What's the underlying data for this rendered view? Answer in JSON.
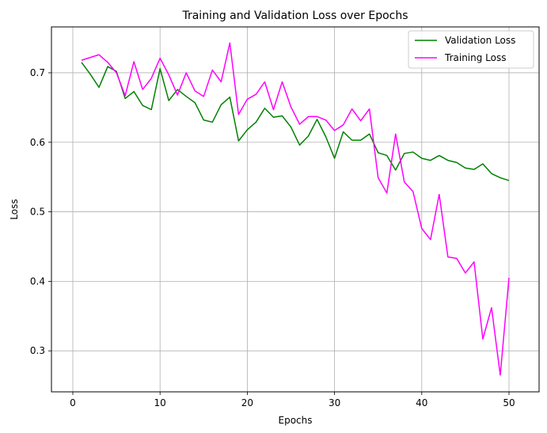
{
  "chart_data": {
    "type": "line",
    "title": "Training and Validation Loss over Epochs",
    "xlabel": "Epochs",
    "ylabel": "Loss",
    "xlim": [
      -2.45,
      53.45
    ],
    "ylim": [
      0.241,
      0.766
    ],
    "xticks": [
      0,
      10,
      20,
      30,
      40,
      50
    ],
    "yticks": [
      0.3,
      0.4,
      0.5,
      0.6,
      0.7
    ],
    "xtick_labels": [
      "0",
      "10",
      "20",
      "30",
      "40",
      "50"
    ],
    "ytick_labels": [
      "0.3",
      "0.4",
      "0.5",
      "0.6",
      "0.7"
    ],
    "grid": true,
    "legend_position": "top-right",
    "x": [
      1,
      2,
      3,
      4,
      5,
      6,
      7,
      8,
      9,
      10,
      11,
      12,
      13,
      14,
      15,
      16,
      17,
      18,
      19,
      20,
      21,
      22,
      23,
      24,
      25,
      26,
      27,
      28,
      29,
      30,
      31,
      32,
      33,
      34,
      35,
      36,
      37,
      38,
      39,
      40,
      41,
      42,
      43,
      44,
      45,
      46,
      47,
      48,
      49,
      50
    ],
    "series": [
      {
        "name": "Validation Loss",
        "color": "#008000",
        "values": [
          0.715,
          0.698,
          0.679,
          0.709,
          0.702,
          0.663,
          0.673,
          0.653,
          0.647,
          0.706,
          0.66,
          0.676,
          0.666,
          0.657,
          0.632,
          0.629,
          0.654,
          0.665,
          0.602,
          0.618,
          0.629,
          0.649,
          0.636,
          0.638,
          0.622,
          0.596,
          0.609,
          0.633,
          0.608,
          0.577,
          0.615,
          0.603,
          0.603,
          0.612,
          0.585,
          0.581,
          0.56,
          0.584,
          0.586,
          0.577,
          0.574,
          0.581,
          0.574,
          0.571,
          0.563,
          0.561,
          0.569,
          0.555,
          0.549,
          0.545
        ]
      },
      {
        "name": "Training Loss",
        "color": "#ff00ff",
        "values": [
          0.718,
          0.722,
          0.726,
          0.715,
          0.7,
          0.667,
          0.716,
          0.676,
          0.692,
          0.721,
          0.697,
          0.668,
          0.7,
          0.674,
          0.666,
          0.704,
          0.687,
          0.743,
          0.64,
          0.662,
          0.669,
          0.687,
          0.647,
          0.687,
          0.651,
          0.626,
          0.637,
          0.637,
          0.632,
          0.617,
          0.625,
          0.648,
          0.631,
          0.648,
          0.549,
          0.527,
          0.612,
          0.543,
          0.529,
          0.476,
          0.46,
          0.525,
          0.435,
          0.433,
          0.412,
          0.428,
          0.317,
          0.362,
          0.265,
          0.405
        ]
      }
    ]
  }
}
